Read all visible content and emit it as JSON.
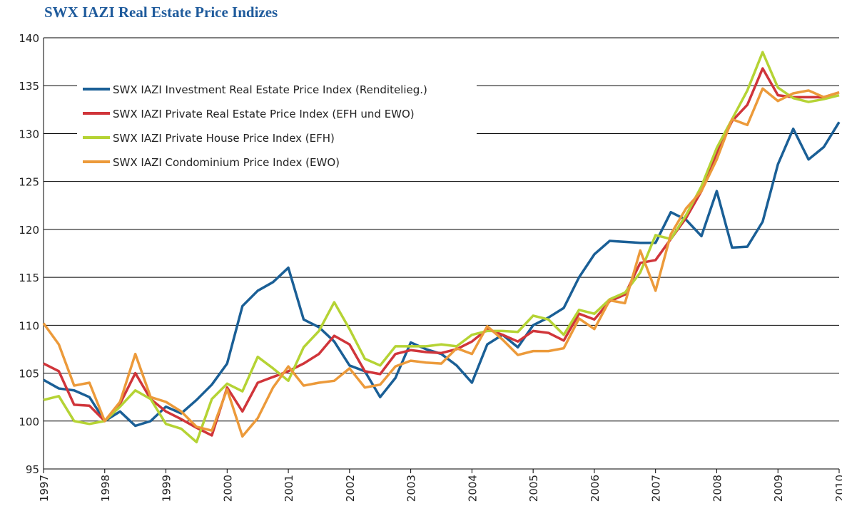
{
  "chart_data": {
    "type": "line",
    "title": "SWX IAZI Real Estate Price Indizes",
    "x": [
      1997,
      1997.25,
      1997.5,
      1997.75,
      1998,
      1998.25,
      1998.5,
      1998.75,
      1999,
      1999.25,
      1999.5,
      1999.75,
      2000,
      2000.25,
      2000.5,
      2000.75,
      2001,
      2001.25,
      2001.5,
      2001.75,
      2002,
      2002.25,
      2002.5,
      2002.75,
      2003,
      2003.25,
      2003.5,
      2003.75,
      2004,
      2004.25,
      2004.5,
      2004.75,
      2005,
      2005.25,
      2005.5,
      2005.75,
      2006,
      2006.25,
      2006.5,
      2006.75,
      2007,
      2007.25,
      2007.5,
      2007.75,
      2008,
      2008.25,
      2008.5,
      2008.75,
      2009,
      2009.25,
      2009.5,
      2009.75,
      2010
    ],
    "series": [
      {
        "name": "SWX IAZI Investment Real Estate Price Index (Renditelieg.)",
        "color": "#1a5f96",
        "values": [
          104.3,
          103.4,
          103.2,
          102.5,
          100.0,
          101.0,
          99.5,
          100.0,
          101.5,
          100.8,
          102.2,
          103.8,
          106.0,
          112.0,
          113.6,
          114.5,
          116.0,
          110.6,
          109.8,
          108.3,
          105.8,
          105.2,
          102.5,
          104.5,
          108.2,
          107.5,
          107.0,
          105.8,
          104.0,
          108.0,
          109.0,
          107.7,
          110.0,
          110.8,
          111.8,
          115.0,
          117.4,
          118.8,
          118.7,
          118.6,
          118.6,
          121.8,
          121.0,
          119.3,
          124.0,
          118.1,
          118.2,
          120.8,
          126.8,
          130.5,
          127.3,
          128.6,
          131.2
        ]
      },
      {
        "name": "SWX IAZI Private Real Estate Price Index (EFH und EWO)",
        "color": "#d0353a",
        "values": [
          106.0,
          105.2,
          101.7,
          101.6,
          100.0,
          101.8,
          105.0,
          102.3,
          101.0,
          100.2,
          99.3,
          98.5,
          103.5,
          101.0,
          104.0,
          104.6,
          105.2,
          106.0,
          107.0,
          108.9,
          108.0,
          105.2,
          104.9,
          107.0,
          107.4,
          107.2,
          107.1,
          107.5,
          108.3,
          109.6,
          109.0,
          108.3,
          109.4,
          109.2,
          108.4,
          111.2,
          110.6,
          112.5,
          113.2,
          116.5,
          116.8,
          119.0,
          121.2,
          124.0,
          128.0,
          131.3,
          133.0,
          136.8,
          134.0,
          133.8,
          133.8,
          133.8,
          134.3
        ]
      },
      {
        "name": "SWX IAZI Private House Price Index (EFH)",
        "color": "#b5d334",
        "values": [
          102.2,
          102.6,
          100.0,
          99.7,
          100.0,
          101.5,
          103.2,
          102.3,
          99.7,
          99.2,
          97.8,
          102.3,
          103.9,
          103.1,
          106.7,
          105.5,
          104.2,
          107.7,
          109.4,
          112.4,
          109.6,
          106.5,
          105.8,
          107.8,
          107.8,
          107.8,
          108.0,
          107.8,
          109.0,
          109.4,
          109.4,
          109.3,
          111.0,
          110.6,
          109.0,
          111.6,
          111.2,
          112.7,
          113.4,
          115.5,
          119.4,
          119.0,
          121.5,
          124.5,
          128.5,
          131.5,
          134.5,
          138.5,
          134.8,
          133.7,
          133.3,
          133.6,
          134.0
        ]
      },
      {
        "name": "SWX IAZI Condominium Price Index (EWO)",
        "color": "#ec9a3a",
        "values": [
          110.2,
          108.0,
          103.7,
          104.0,
          100.0,
          102.0,
          107.0,
          102.5,
          102.0,
          101.0,
          99.4,
          99.0,
          103.3,
          98.4,
          100.3,
          103.5,
          105.7,
          103.7,
          104.0,
          104.2,
          105.5,
          103.5,
          103.8,
          105.7,
          106.3,
          106.1,
          106.0,
          107.6,
          107.0,
          109.9,
          108.5,
          106.9,
          107.3,
          107.3,
          107.6,
          110.7,
          109.6,
          112.6,
          112.3,
          117.8,
          113.6,
          119.5,
          122.2,
          124.0,
          127.3,
          131.5,
          130.9,
          134.7,
          133.4,
          134.2,
          134.5,
          133.8,
          134.3
        ]
      }
    ],
    "xlim": [
      1997,
      2010
    ],
    "xticks": [
      1997,
      1998,
      1999,
      2000,
      2001,
      2002,
      2003,
      2004,
      2005,
      2006,
      2007,
      2008,
      2009,
      2010
    ],
    "ylim": [
      95,
      140
    ],
    "yticks": [
      95,
      100,
      105,
      110,
      115,
      120,
      125,
      130,
      135,
      140
    ],
    "grid": true,
    "legend": "upper left"
  }
}
